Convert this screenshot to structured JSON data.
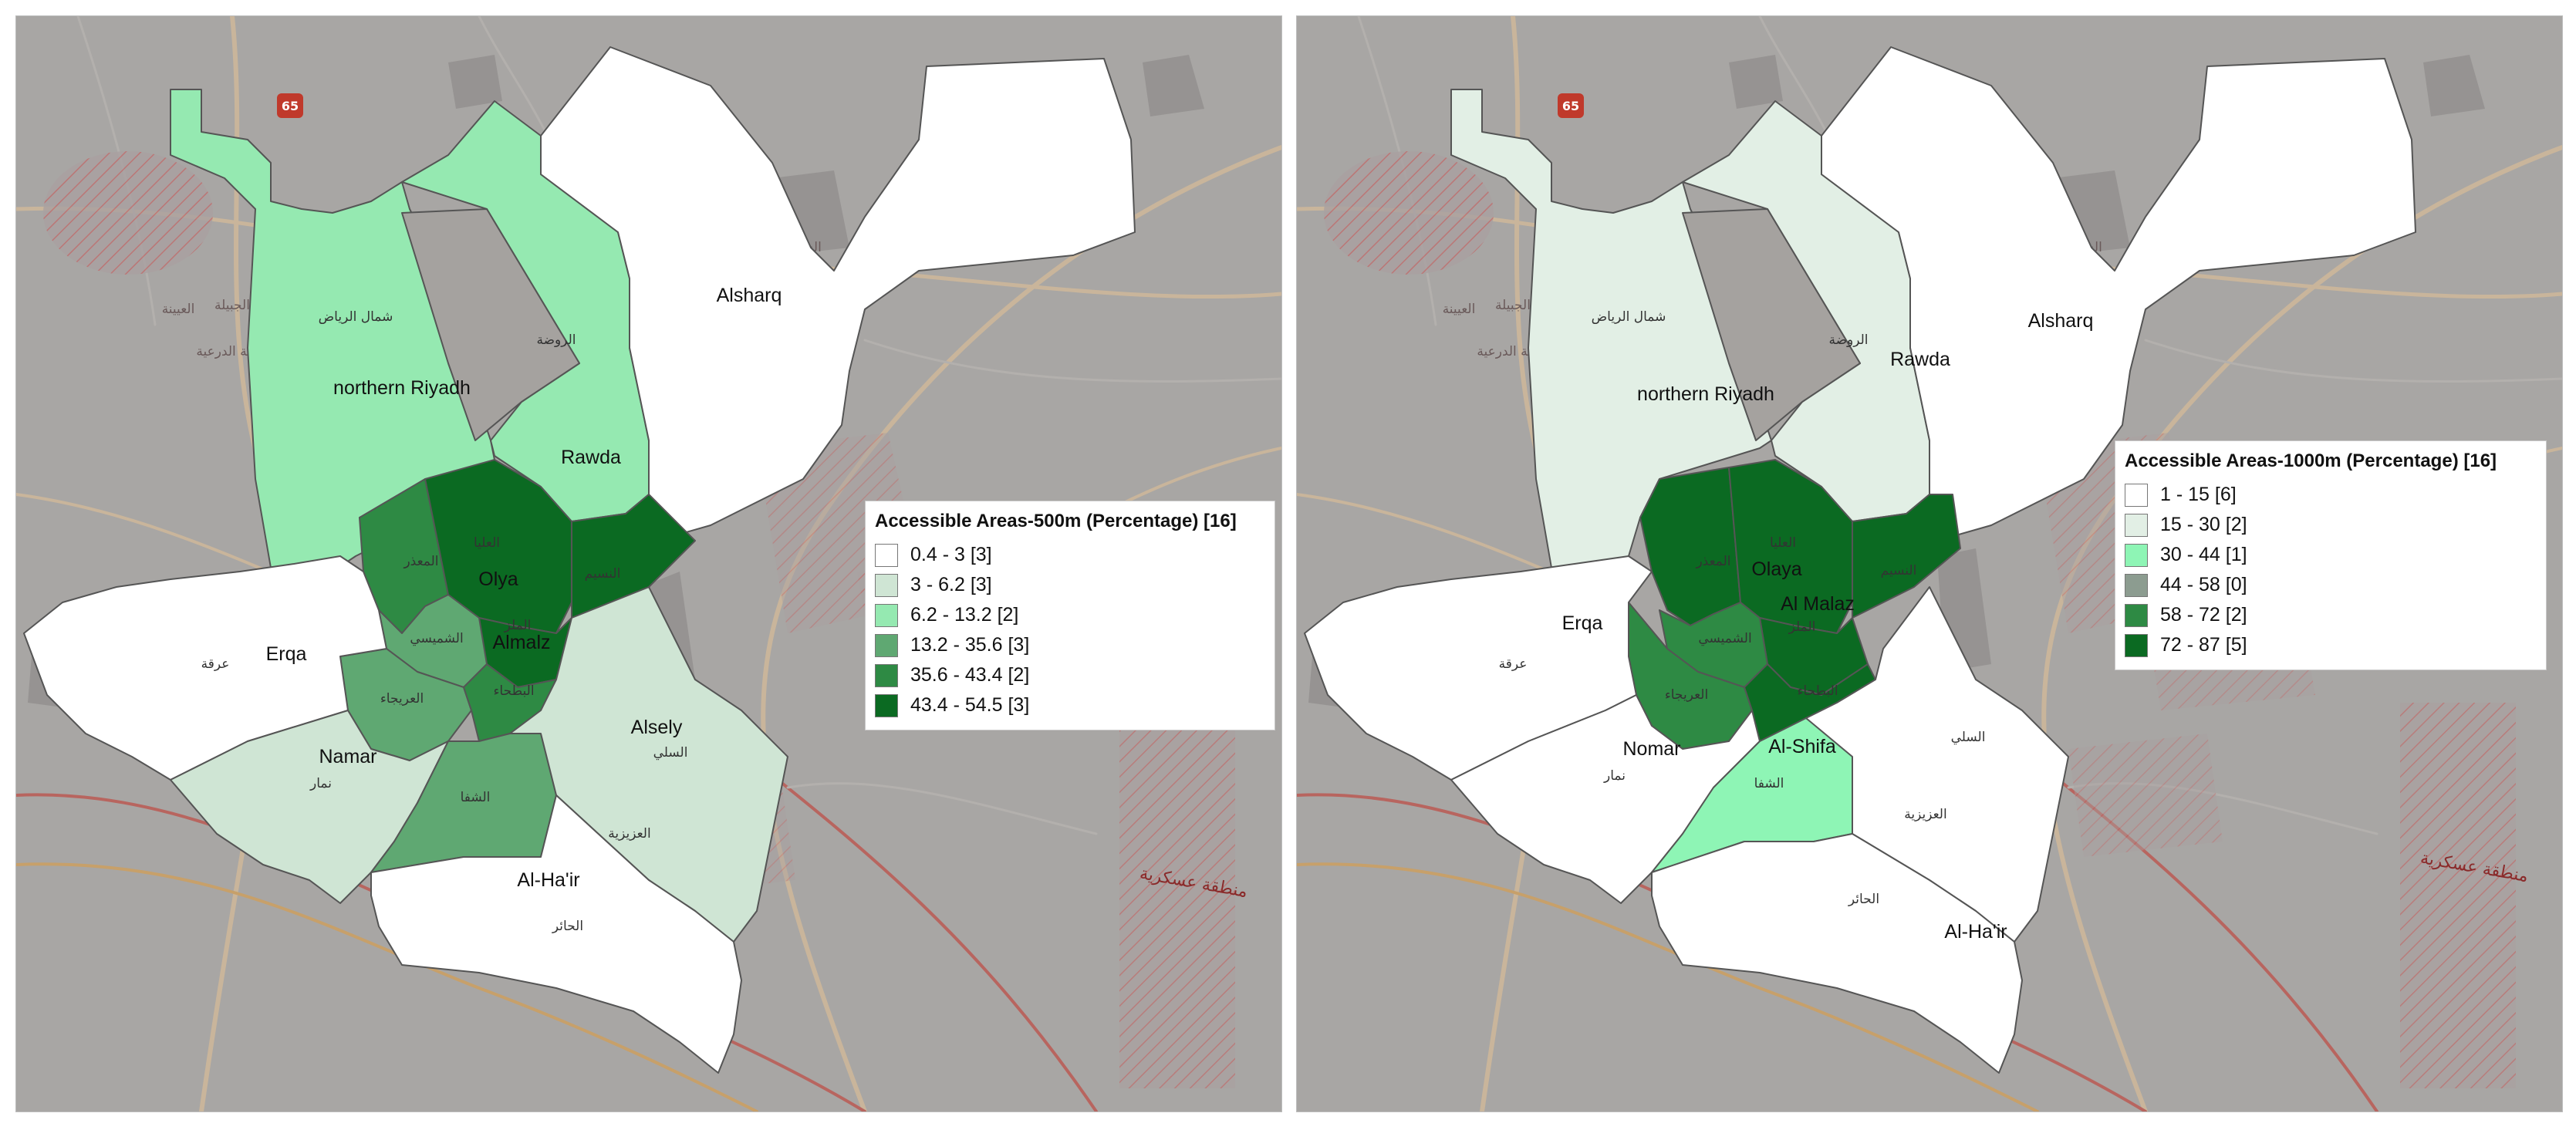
{
  "maps": [
    {
      "legend": {
        "title": "Accessible Areas-500m (Percentage) [16]",
        "classes": [
          {
            "label": "0.4 - 3 [3]",
            "color": "#ffffff"
          },
          {
            "label": "3 - 6.2 [3]",
            "color": "#cfe5d4"
          },
          {
            "label": "6.2 - 13.2 [2]",
            "color": "#95e9b1"
          },
          {
            "label": "13.2 - 35.6 [3]",
            "color": "#5fa872"
          },
          {
            "label": "35.6 - 43.4 [2]",
            "color": "#2e8a44"
          },
          {
            "label": "43.4 - 54.5 [3]",
            "color": "#0b6a22"
          }
        ]
      },
      "labels": {
        "alsharq": "Alsharq",
        "northern_riyadh": "northern Riyadh",
        "rawda": "Rawda",
        "olya": "Olya",
        "almalz": "Almalz",
        "erqa": "Erqa",
        "namar": "Namar",
        "alsely": "Alsely",
        "alhair": "Al-Ha'ir",
        "ar_north": "شمال الرياض",
        "ar_rawda": "الروضة",
        "ar_olaya": "العليا",
        "ar_maathar": "المعذر",
        "ar_naseem": "النسيم",
        "ar_malaz": "الملز",
        "ar_shumaisi": "الشميسي",
        "ar_uraija": "العريجاء",
        "ar_batha": "البطحاء",
        "ar_erqa": "عرقة",
        "ar_namar": "نمار",
        "ar_shifa": "الشفا",
        "ar_sulay": "السلي",
        "ar_aziziyah": "العزيزية",
        "ar_hair": "الحائر"
      }
    },
    {
      "legend": {
        "title": "Accessible Areas-1000m (Percentage) [16]",
        "classes": [
          {
            "label": "1 - 15 [6]",
            "color": "#ffffff"
          },
          {
            "label": "15 - 30 [2]",
            "color": "#e2efe5"
          },
          {
            "label": "30 - 44 [1]",
            "color": "#8ef5b5"
          },
          {
            "label": "44 - 58 [0]",
            "color": "#8c9c90"
          },
          {
            "label": "58 - 72 [2]",
            "color": "#2e8a44"
          },
          {
            "label": "72 - 87 [5]",
            "color": "#0b6a22"
          }
        ]
      },
      "labels": {
        "alsharq": "Alsharq",
        "northern_riyadh": "northern Riyadh",
        "rawda": "Rawda",
        "olaya": "Olaya",
        "almalaz": "Al Malaz",
        "erqa": "Erqa",
        "nomar": "Nomar",
        "alshifa": "Al-Shifa",
        "alhair": "Al-Ha'ir",
        "ar_north": "شمال الرياض",
        "ar_rawda": "الروضة",
        "ar_olaya": "العليا",
        "ar_maathar": "المعذر",
        "ar_naseem": "النسيم",
        "ar_malaz": "الملز",
        "ar_shumaisi": "الشميسي",
        "ar_uraija": "العريجاء",
        "ar_batha": "البطحاء",
        "ar_erqa": "عرقة",
        "ar_namar": "نمار",
        "ar_shifa": "الشفا",
        "ar_sulay": "السلي",
        "ar_aziziyah": "العزيزية",
        "ar_hair": "الحائر"
      }
    }
  ],
  "basemap": {
    "road_shield": "65",
    "military_zone": "منطقة عسكرية",
    "town_east": "الشرق",
    "town_west_1": "العيينة",
    "town_west_2": "الجبيلة",
    "town_west_3": "محافظة الدرعية"
  }
}
